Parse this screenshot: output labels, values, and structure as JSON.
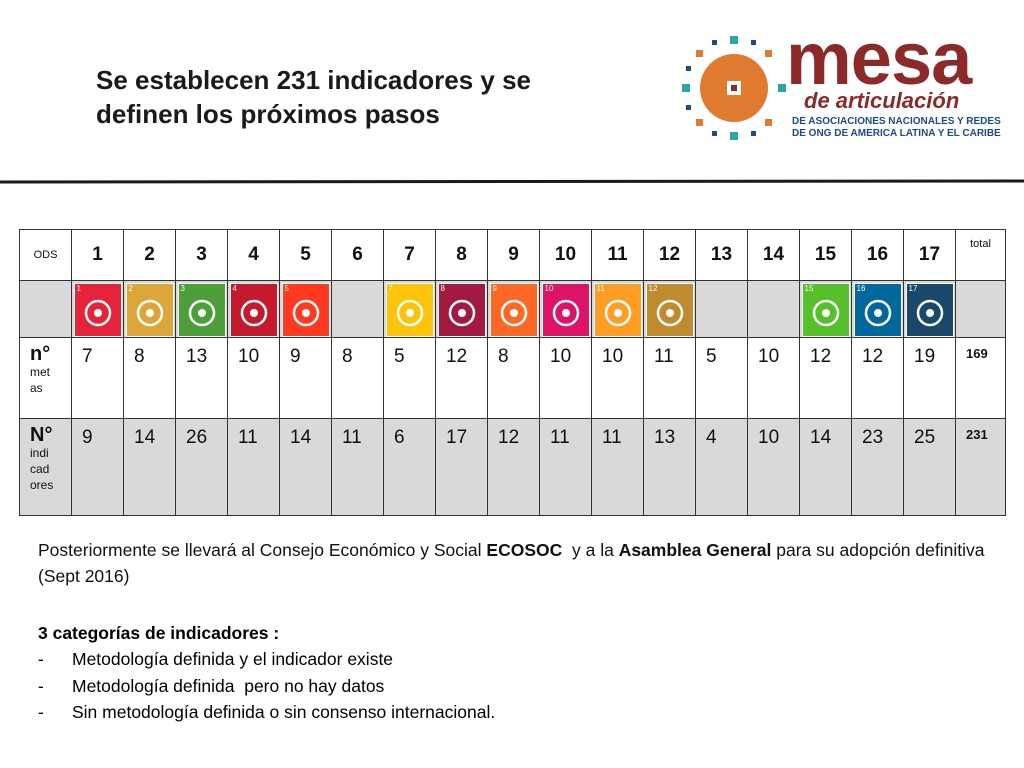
{
  "title": {
    "line1": "Se establecen 231 indicadores y se",
    "line2": "definen los próximos pasos"
  },
  "logo": {
    "word": "mesa",
    "sub": "de articulación",
    "line1": "DE ASOCIACIONES NACIONALES Y REDES",
    "line2": "DE ONG DE AMERICA LATINA Y EL CARIBE",
    "colors": {
      "orange": "#e07a2e",
      "maroon": "#8c2a2a",
      "blue": "#1b4b8a",
      "teal": "#2aa7a0"
    }
  },
  "table": {
    "ods_label": "ODS",
    "total_label": "total",
    "goals": [
      "1",
      "2",
      "3",
      "4",
      "5",
      "6",
      "7",
      "8",
      "9",
      "10",
      "11",
      "12",
      "13",
      "14",
      "15",
      "16",
      "17"
    ],
    "icon_numbers": [
      "1",
      "2",
      "3",
      "4",
      "5",
      "",
      "7",
      "8",
      "9",
      "10",
      "11",
      "12",
      "",
      "",
      "15",
      "16",
      "17"
    ],
    "icon_colors": [
      "#e5243b",
      "#dda63a",
      "#4c9f38",
      "#c5192d",
      "#ff3a21",
      "",
      "#fcc30b",
      "#a21942",
      "#fd6925",
      "#dd1367",
      "#fd9d24",
      "#bf8b2e",
      "",
      "",
      "#56c02b",
      "#00689d",
      "#19486a"
    ],
    "icon_names": [
      "no-poverty-icon",
      "zero-hunger-icon",
      "good-health-icon",
      "quality-education-icon",
      "gender-equality-icon",
      "",
      "clean-energy-icon",
      "decent-work-icon",
      "industry-innovation-icon",
      "reduced-inequalities-icon",
      "sustainable-cities-icon",
      "responsible-consumption-icon",
      "",
      "",
      "life-on-land-icon",
      "peace-justice-icon",
      "partnerships-icon"
    ],
    "metas_label_big": "n°",
    "metas_label_small": [
      "met",
      "as"
    ],
    "metas": [
      "7",
      "8",
      "13",
      "10",
      "9",
      "8",
      "5",
      "12",
      "8",
      "10",
      "10",
      "11",
      "5",
      "10",
      "12",
      "12",
      "19"
    ],
    "metas_total": "169",
    "ind_label_big": "N°",
    "ind_label_small": [
      "indi",
      "cad",
      "ores"
    ],
    "indicadores": [
      "9",
      "14",
      "26",
      "11",
      "14",
      "11",
      "6",
      "17",
      "12",
      "11",
      "11",
      "13",
      "4",
      "10",
      "14",
      "23",
      "25"
    ],
    "ind_total": "231"
  },
  "paragraph": {
    "t1": "Posteriormente se llevará al Consejo Económico y Social ",
    "b1": "ECOSOC",
    "t2": "  y a la ",
    "b2": "Asamblea General",
    "t3": " para su adopción definitiva (Sept 2016)"
  },
  "categories": {
    "title": "3 categorías de indicadores :",
    "items": [
      "Metodología definida y el indicador existe",
      "Metodología definida  pero no hay datos",
      "Sin metodología definida o sin consenso internacional."
    ]
  }
}
